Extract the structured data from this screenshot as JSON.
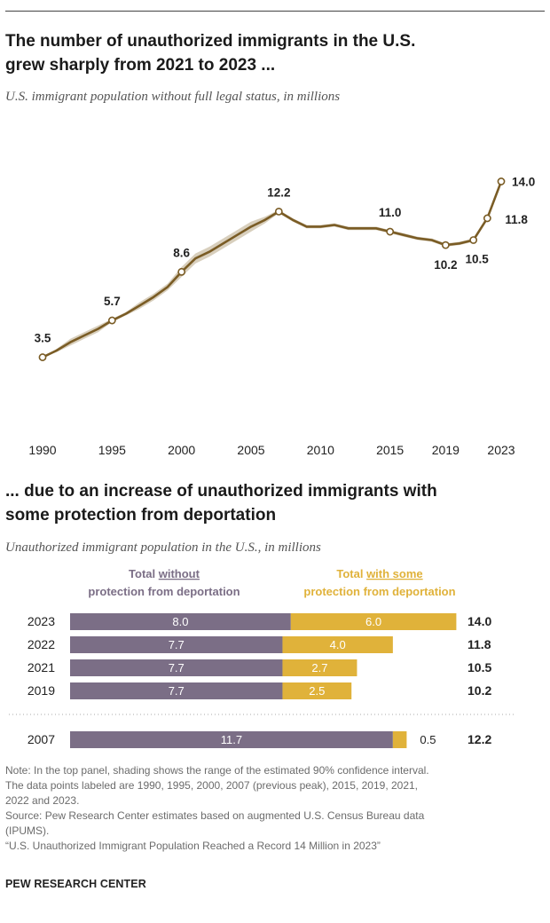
{
  "chart1": {
    "title_line1": "The number of unauthorized immigrants in the U.S.",
    "title_line2": "grew sharply from 2021 to 2023 ...",
    "subtitle": "U.S. immigrant population without full legal status, in millions"
  },
  "chart2": {
    "title_line1": "... due to an increase of unauthorized immigrants with",
    "title_line2": "some protection from deportation",
    "subtitle": "Unauthorized immigrant population in the U.S., in millions"
  },
  "colors": {
    "line": "#7a5c25",
    "band": "#d8cfbd",
    "marker_fill": "#ffffff",
    "without": "#7b6e86",
    "with": "#e0b23a",
    "text": "#222222",
    "note": "#6b6b6b"
  },
  "chart_data": [
    {
      "type": "line",
      "xlim": [
        1990,
        2023
      ],
      "ylim": [
        3,
        14.5
      ],
      "x_ticks": [
        "1990",
        "1995",
        "2000",
        "2005",
        "2010",
        "2015",
        "2019",
        "2023"
      ],
      "x_tick_values": [
        1990,
        1995,
        2000,
        2005,
        2010,
        2015,
        2019,
        2023
      ],
      "series": [
        {
          "x": [
            1990,
            1991,
            1992,
            1993,
            1994,
            1995,
            1996,
            1997,
            1998,
            1999,
            2000,
            2001,
            2002,
            2003,
            2004,
            2005,
            2006,
            2007,
            2008,
            2009,
            2010,
            2011,
            2012,
            2013,
            2014,
            2015,
            2016,
            2017,
            2018,
            2019,
            2020,
            2021,
            2022,
            2023
          ],
          "values": [
            3.5,
            3.9,
            4.4,
            4.8,
            5.2,
            5.7,
            6.1,
            6.6,
            7.1,
            7.7,
            8.6,
            9.4,
            9.8,
            10.3,
            10.8,
            11.3,
            11.7,
            12.2,
            11.7,
            11.3,
            11.3,
            11.4,
            11.2,
            11.2,
            11.2,
            11.0,
            10.8,
            10.6,
            10.5,
            10.2,
            10.3,
            10.5,
            11.8,
            14.0
          ],
          "ci_low": [
            3.5,
            3.8,
            4.2,
            4.6,
            5.0,
            5.6,
            6.0,
            6.4,
            6.9,
            7.5,
            8.3,
            9.1,
            9.5,
            10.0,
            10.5,
            11.0,
            11.5,
            12.1,
            11.6,
            11.2,
            11.2,
            11.3,
            11.1,
            11.1,
            11.1,
            10.9,
            10.7,
            10.5,
            10.4,
            10.1,
            10.2,
            10.4,
            11.7,
            13.9
          ],
          "ci_high": [
            3.5,
            4.0,
            4.6,
            5.0,
            5.4,
            5.8,
            6.2,
            6.8,
            7.3,
            7.9,
            8.9,
            9.7,
            10.1,
            10.6,
            11.1,
            11.6,
            11.9,
            12.3,
            11.8,
            11.4,
            11.4,
            11.5,
            11.3,
            11.3,
            11.3,
            11.1,
            10.9,
            10.7,
            10.6,
            10.3,
            10.4,
            10.6,
            11.9,
            14.1
          ]
        }
      ],
      "labeled_points": [
        {
          "x": 1990,
          "label": "3.5"
        },
        {
          "x": 1995,
          "label": "5.7"
        },
        {
          "x": 2000,
          "label": "8.6"
        },
        {
          "x": 2007,
          "label": "12.2"
        },
        {
          "x": 2015,
          "label": "11.0"
        },
        {
          "x": 2019,
          "label": "10.2"
        },
        {
          "x": 2021,
          "label": "10.5"
        },
        {
          "x": 2022,
          "label": "11.8"
        },
        {
          "x": 2023,
          "label": "14.0"
        }
      ]
    },
    {
      "type": "bar",
      "stacked": true,
      "orientation": "horizontal",
      "legend": {
        "without_prefix": "Total ",
        "without_underlined": "without",
        "without_line2": "protection from deportation",
        "with_prefix": "Total ",
        "with_underlined": "with some",
        "with_line2": "protection from deportation"
      },
      "categories": [
        "2023",
        "2022",
        "2021",
        "2019",
        "2007"
      ],
      "series": [
        {
          "key": "without",
          "values": [
            8.0,
            7.7,
            7.7,
            7.7,
            11.7
          ],
          "labels": [
            "8.0",
            "7.7",
            "7.7",
            "7.7",
            "11.7"
          ]
        },
        {
          "key": "with",
          "values": [
            6.0,
            4.0,
            2.7,
            2.5,
            0.5
          ],
          "labels": [
            "6.0",
            "4.0",
            "2.7",
            "2.5",
            "0.5"
          ]
        }
      ],
      "totals": [
        "14.0",
        "11.8",
        "10.5",
        "10.2",
        "12.2"
      ]
    }
  ],
  "notes": {
    "line1": "Note: In the top panel, shading shows the range of the estimated 90% confidence interval.",
    "line2": "The data points labeled are 1990, 1995, 2000, 2007 (previous peak), 2015, 2019, 2021,",
    "line3": "2022 and 2023.",
    "line4": "Source: Pew Research Center estimates based on augmented U.S. Census Bureau data",
    "line5": "(IPUMS).",
    "line6": "“U.S. Unauthorized Immigrant Population Reached a Record 14 Million in 2023”"
  },
  "brand": "PEW RESEARCH CENTER"
}
